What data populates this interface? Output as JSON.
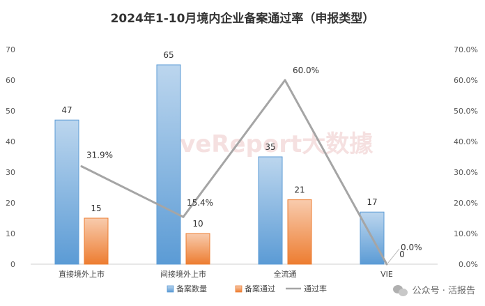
{
  "chart_data": {
    "type": "bar+line",
    "title": "2024年1-10月境内企业备案通过率（申报类型）",
    "categories": [
      "直接境外上市",
      "间接境外上市",
      "全流通",
      "VIE"
    ],
    "series": [
      {
        "name": "备案数量",
        "type": "bar",
        "axis": "left",
        "values": [
          47,
          65,
          35,
          17
        ],
        "labels": [
          "47",
          "65",
          "35",
          "17"
        ]
      },
      {
        "name": "备案通过",
        "type": "bar",
        "axis": "left",
        "values": [
          15,
          10,
          21,
          0
        ],
        "labels": [
          "15",
          "10",
          "21",
          "0"
        ]
      },
      {
        "name": "通过率",
        "type": "line",
        "axis": "right",
        "values": [
          31.9,
          15.4,
          60.0,
          0.0
        ],
        "labels": [
          "31.9%",
          "15.4%",
          "60.0%",
          "0.0%"
        ]
      }
    ],
    "y_left": {
      "min": 0,
      "max": 70,
      "step": 10,
      "ticks": [
        "0",
        "10",
        "20",
        "30",
        "40",
        "50",
        "60",
        "70"
      ]
    },
    "y_right": {
      "min": 0,
      "max": 70,
      "step": 10,
      "ticks": [
        "0.0%",
        "10.0%",
        "20.0%",
        "30.0%",
        "40.0%",
        "50.0%",
        "60.0%",
        "70.0%"
      ]
    },
    "grid": false,
    "legend_position": "bottom",
    "colors": {
      "bar1_top": "#bcd6ee",
      "bar1_bottom": "#5b9bd5",
      "bar1_edge": "#5b9bd5",
      "bar2_top": "#f8cbad",
      "bar2_bottom": "#ed7d31",
      "bar2_edge": "#ed7d31",
      "line": "#a5a5a5"
    }
  },
  "watermark": "LiveReport大数據",
  "footer": {
    "credit": "公众号 · 活报告"
  }
}
